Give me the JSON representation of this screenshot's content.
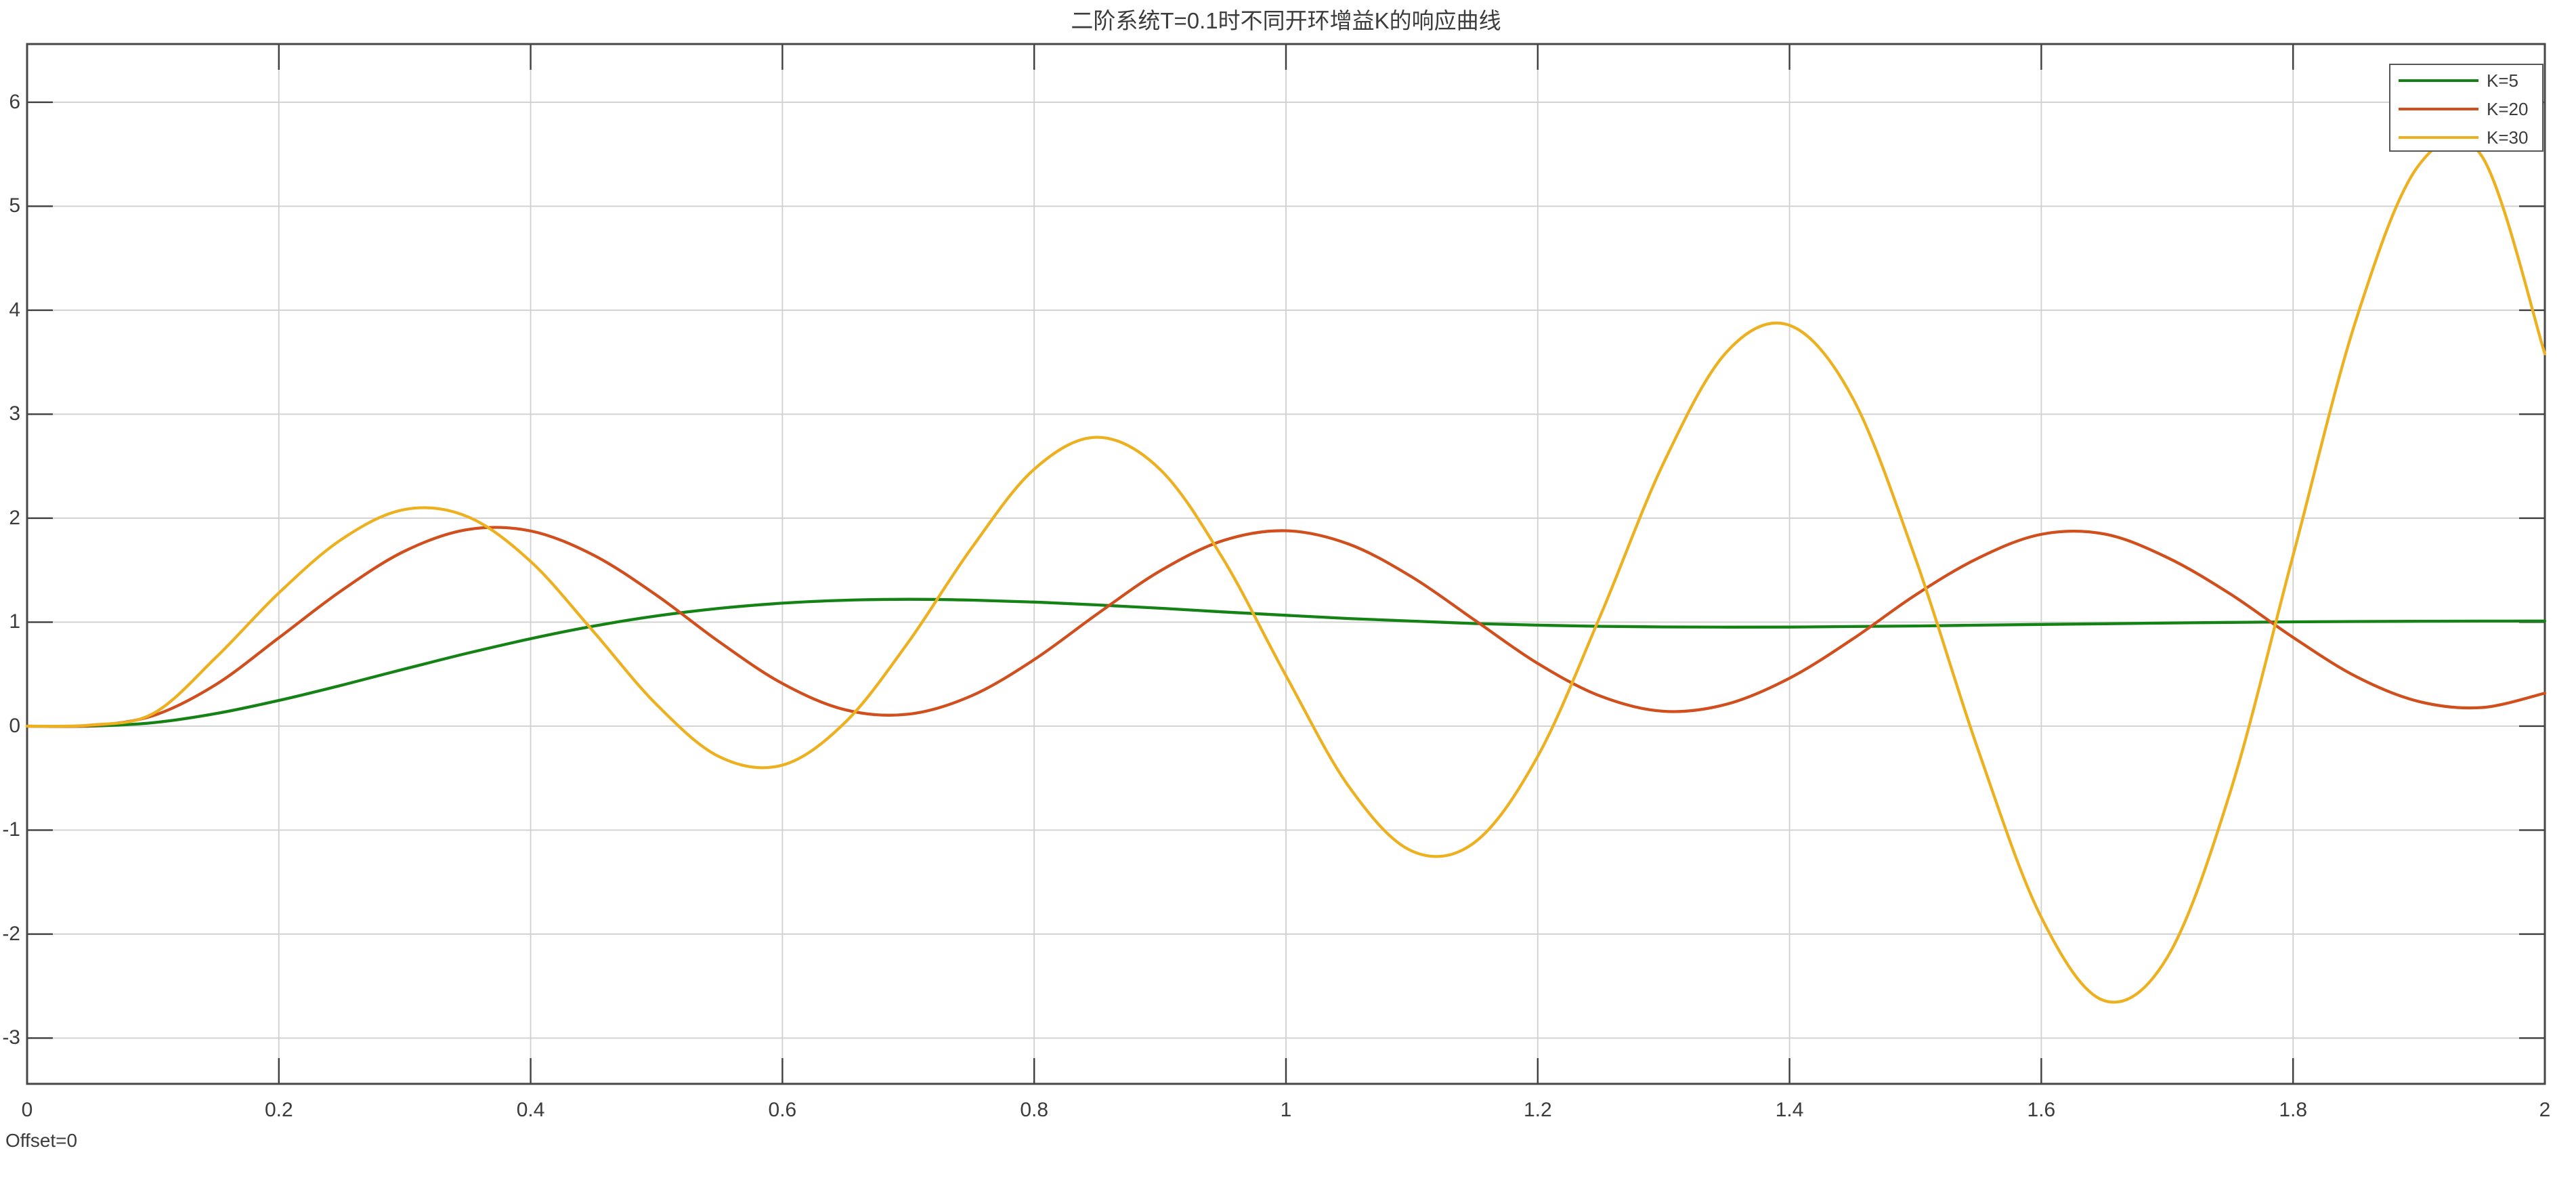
{
  "chart_data": {
    "type": "line",
    "title": "二阶系统T=0.1时不同开环增益K的响应曲线",
    "xlabel": "",
    "ylabel": "",
    "xlim": [
      0,
      2
    ],
    "ylim": [
      -3.44,
      6.56
    ],
    "grid": true,
    "legend_position": "top-right",
    "offset_label": "Offset=0",
    "x_ticks": [
      0,
      0.2,
      0.4,
      0.6,
      0.8,
      1,
      1.2,
      1.4,
      1.6,
      1.8,
      2
    ],
    "x_tick_labels": [
      "0",
      "0.2",
      "0.4",
      "0.6",
      "0.8",
      "1",
      "1.2",
      "1.4",
      "1.6",
      "1.8",
      "2"
    ],
    "y_ticks": [
      6,
      5,
      4,
      3,
      2,
      1,
      0,
      -1,
      -2,
      -3
    ],
    "y_tick_labels": [
      "6",
      "5",
      "4",
      "3",
      "2",
      "1",
      "0",
      "-1",
      "-2",
      "-3"
    ],
    "x": [
      0,
      0.05,
      0.1,
      0.15,
      0.2,
      0.25,
      0.3,
      0.35,
      0.4,
      0.45,
      0.5,
      0.55,
      0.6,
      0.65,
      0.7,
      0.75,
      0.8,
      0.85,
      0.9,
      0.95,
      1,
      1.05,
      1.1,
      1.15,
      1.2,
      1.25,
      1.3,
      1.35,
      1.4,
      1.45,
      1.5,
      1.55,
      1.6,
      1.65,
      1.7,
      1.75,
      1.8,
      1.85,
      1.9,
      1.95,
      2
    ],
    "series": [
      {
        "name": "K=5",
        "color": "#148214",
        "values": [
          0,
          0,
          0.033,
          0.121,
          0.247,
          0.394,
          0.55,
          0.702,
          0.841,
          0.962,
          1.06,
          1.133,
          1.183,
          1.211,
          1.22,
          1.212,
          1.193,
          1.166,
          1.134,
          1.099,
          1.066,
          1.035,
          1.01,
          0.987,
          0.971,
          0.96,
          0.954,
          0.952,
          0.953,
          0.958,
          0.963,
          0.971,
          0.978,
          0.985,
          0.992,
          0.998,
          1.003,
          1.006,
          1.009,
          1.01,
          1.011
        ]
      },
      {
        "name": "K=20",
        "color": "#D14E1D",
        "values": [
          0,
          0.005,
          0.1,
          0.4,
          0.85,
          1.306,
          1.684,
          1.891,
          1.877,
          1.644,
          1.259,
          0.809,
          0.41,
          0.157,
          0.115,
          0.291,
          0.64,
          1.078,
          1.492,
          1.784,
          1.879,
          1.75,
          1.435,
          1.019,
          0.603,
          0.288,
          0.143,
          0.211,
          0.461,
          0.836,
          1.261,
          1.617,
          1.845,
          1.848,
          1.622,
          1.272,
          0.854,
          0.477,
          0.237,
          0.179,
          0.317
        ]
      },
      {
        "name": "K=30",
        "color": "#EDB120",
        "values": [
          0,
          0.01,
          0.12,
          0.66,
          1.281,
          1.798,
          2.084,
          2.014,
          1.584,
          0.908,
          0.208,
          -0.295,
          -0.375,
          0.038,
          0.807,
          1.709,
          2.471,
          2.778,
          2.469,
          1.61,
          0.485,
          -0.582,
          -1.201,
          -1.117,
          -0.29,
          1.07,
          2.532,
          3.598,
          3.855,
          3.16,
          1.615,
          -0.235,
          -1.839,
          -2.64,
          -2.225,
          -0.636,
          1.641,
          3.907,
          5.397,
          5.481,
          3.58
        ]
      }
    ],
    "colors": {
      "grid": "#D0D0D0",
      "border": "#474747",
      "tick": "#3E3E3E",
      "text": "#3C3C3C",
      "background": "#FFFFFF"
    }
  }
}
